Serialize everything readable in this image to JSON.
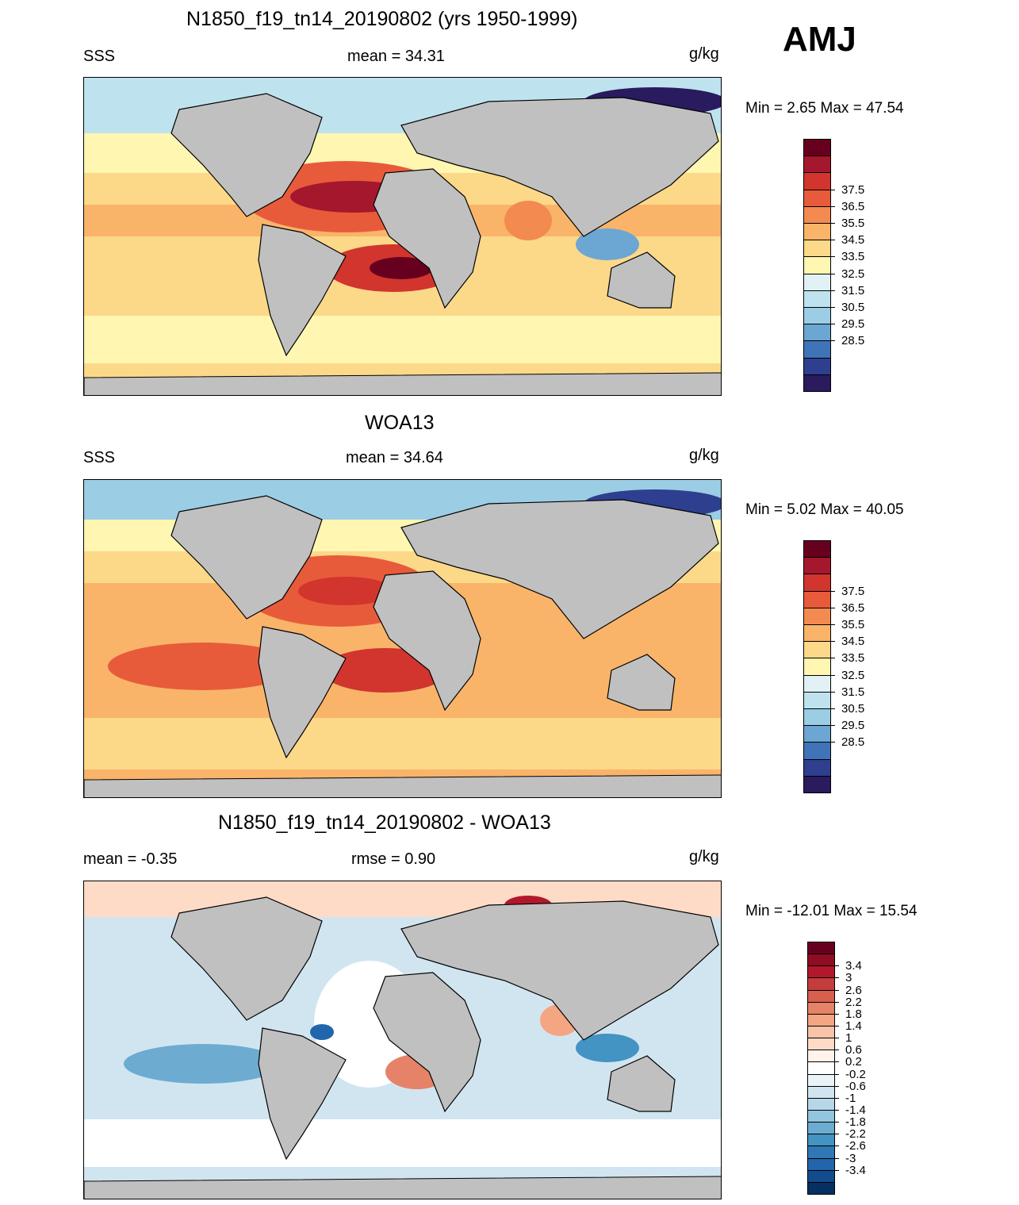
{
  "header": {
    "season": "AMJ"
  },
  "units_label": "g/kg",
  "panels": [
    {
      "title": "N1850_f19_tn14_20190802 (yrs 1950-1999)",
      "left_label": "SSS",
      "center_label": "mean =  34.31",
      "units": "g/kg",
      "minmax": "Min =   2.65 Max =  47.54",
      "colorbar": {
        "labels": [
          "37.5",
          "36.5",
          "35.5",
          "34.5",
          "33.5",
          "32.5",
          "31.5",
          "30.5",
          "29.5",
          "28.5"
        ],
        "colors": [
          "#67001f",
          "#a5172c",
          "#d1352e",
          "#e85b3a",
          "#f38a50",
          "#f9b46a",
          "#fcd889",
          "#fef6b1",
          "#e1f1f6",
          "#bee3ef",
          "#9bcde4",
          "#6ca6d3",
          "#3f74b8",
          "#2e3f8f",
          "#2a1a5e"
        ]
      }
    },
    {
      "title": "WOA13",
      "left_label": "SSS",
      "center_label": "mean =  34.64",
      "units": "g/kg",
      "minmax": "Min =   5.02 Max =  40.05",
      "colorbar": {
        "labels": [
          "37.5",
          "36.5",
          "35.5",
          "34.5",
          "33.5",
          "32.5",
          "31.5",
          "30.5",
          "29.5",
          "28.5"
        ],
        "colors": [
          "#67001f",
          "#a5172c",
          "#d1352e",
          "#e85b3a",
          "#f38a50",
          "#f9b46a",
          "#fcd889",
          "#fef6b1",
          "#e1f1f6",
          "#bee3ef",
          "#9bcde4",
          "#6ca6d3",
          "#3f74b8",
          "#2e3f8f",
          "#2a1a5e"
        ]
      }
    },
    {
      "title": "N1850_f19_tn14_20190802 - WOA13",
      "left_label": "mean =  -0.35",
      "center_label": "rmse =   0.90",
      "units": "g/kg",
      "minmax": "Min = -12.01 Max =  15.54",
      "colorbar": {
        "labels": [
          "3.4",
          "3",
          "2.6",
          "2.2",
          "1.8",
          "1.4",
          "1",
          "0.6",
          "0.2",
          "-0.2",
          "-0.6",
          "-1",
          "-1.4",
          "-1.8",
          "-2.2",
          "-2.6",
          "-3",
          "-3.4"
        ],
        "colors": [
          "#67001f",
          "#8f0d23",
          "#b2182b",
          "#c43c3c",
          "#d6604d",
          "#e58267",
          "#f4a582",
          "#f8c3a7",
          "#fddbc7",
          "#fff3ec",
          "#ffffff",
          "#eaf3f8",
          "#d1e5f0",
          "#b6d7e8",
          "#92c5de",
          "#6eabd1",
          "#4393c3",
          "#2f78b5",
          "#2166ac",
          "#134c8c",
          "#053061"
        ]
      }
    }
  ]
}
